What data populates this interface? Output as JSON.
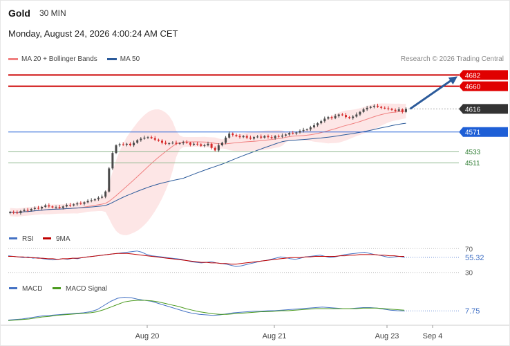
{
  "header": {
    "title": "Gold",
    "interval": "30 MIN",
    "datetime": "Monday, August 24, 2026 4:00:24 AM CET",
    "credit": "Research © 2026 Trading Central"
  },
  "legend": {
    "ma20": "MA 20 + Bollinger Bands",
    "ma50": "MA 50"
  },
  "colors": {
    "candle_up": "#4a4a4a",
    "candle_down": "#d62b2b",
    "ma20": "#f08080",
    "ma50": "#2b5a9a",
    "band_fill": "#fde3e3",
    "resistance": "#cc0000",
    "support": "#1e5fd6",
    "minor_level": "#8fb88f",
    "current": "#333333",
    "arrow": "#2b5a9a",
    "rsi": "#4472c4",
    "rsi_ma": "#c00000",
    "macd": "#4472c4",
    "macd_signal": "#4a9a1e"
  },
  "chart_data": [
    {
      "type": "candlestick",
      "title": "Gold",
      "interval": "30 MIN",
      "ylim": [
        4390,
        4700
      ],
      "x_ticks": [
        "Aug 20",
        "Aug 21",
        "Aug 23",
        "Sep 4"
      ],
      "closes": [
        4415,
        4414,
        4413,
        4417,
        4419,
        4418,
        4421,
        4423,
        4422,
        4425,
        4428,
        4426,
        4424,
        4425,
        4423,
        4426,
        4429,
        4428,
        4430,
        4432,
        4431,
        4434,
        4437,
        4438,
        4440,
        4443,
        4445,
        4455,
        4500,
        4530,
        4545,
        4547,
        4546,
        4548,
        4545,
        4550,
        4555,
        4558,
        4560,
        4561,
        4559,
        4556,
        4554,
        4550,
        4548,
        4549,
        4550,
        4548,
        4549,
        4551,
        4550,
        4546,
        4548,
        4547,
        4544,
        4545,
        4548,
        4540,
        4535,
        4545,
        4550,
        4560,
        4568,
        4565,
        4563,
        4561,
        4563,
        4560,
        4558,
        4561,
        4562,
        4560,
        4563,
        4561,
        4559,
        4563,
        4562,
        4564,
        4566,
        4569,
        4568,
        4570,
        4573,
        4575,
        4576,
        4580,
        4584,
        4588,
        4592,
        4597,
        4600,
        4598,
        4602,
        4605,
        4604,
        4600,
        4598,
        4601,
        4605,
        4610,
        4615,
        4618,
        4620,
        4622,
        4620,
        4618,
        4617,
        4616,
        4614,
        4612,
        4615,
        4610,
        4616
      ],
      "levels": [
        {
          "label": "4682",
          "value": 4682,
          "kind": "resistance"
        },
        {
          "label": "4660",
          "value": 4660,
          "kind": "resistance"
        },
        {
          "label": "4616",
          "value": 4616,
          "kind": "current"
        },
        {
          "label": "4571",
          "value": 4571,
          "kind": "support"
        },
        {
          "label": "4533",
          "value": 4533,
          "kind": "minor"
        },
        {
          "label": "4511",
          "value": 4511,
          "kind": "minor"
        }
      ],
      "forecast_arrow": {
        "from": 4616,
        "to": 4682
      }
    },
    {
      "type": "line",
      "title": "RSI",
      "legend": [
        "RSI",
        "9MA"
      ],
      "ylim": [
        25,
        75
      ],
      "reference_levels": [
        "70",
        "30"
      ],
      "current_value": "55.32",
      "rsi": [
        58,
        57,
        56,
        55,
        56,
        54,
        55,
        53,
        52,
        51,
        52,
        53,
        52,
        54,
        53,
        55,
        56,
        57,
        58,
        59,
        60,
        61,
        62,
        63,
        64,
        65,
        66,
        64,
        60,
        58,
        57,
        56,
        55,
        54,
        53,
        52,
        50,
        48,
        47,
        46,
        47,
        48,
        46,
        45,
        44,
        42,
        40,
        41,
        43,
        45,
        47,
        49,
        50,
        52,
        54,
        56,
        55,
        53,
        52,
        54,
        56,
        57,
        58,
        59,
        57,
        55,
        56,
        58,
        60,
        61,
        62,
        63,
        64,
        62,
        60,
        59,
        57,
        55,
        56,
        57,
        55.32
      ],
      "ma9": [
        57,
        57,
        56,
        56,
        55,
        55,
        54,
        54,
        53,
        53,
        52,
        53,
        53,
        54,
        54,
        55,
        56,
        57,
        58,
        59,
        60,
        61,
        62,
        62,
        62,
        61,
        60,
        59,
        58,
        57,
        56,
        55,
        54,
        53,
        52,
        51,
        50,
        49,
        48,
        47,
        47,
        46,
        46,
        45,
        45,
        44,
        44,
        45,
        46,
        47,
        48,
        49,
        50,
        51,
        52,
        53,
        54,
        55,
        55,
        55,
        56,
        56,
        57,
        57,
        57,
        57,
        57,
        58,
        58,
        59,
        59,
        60,
        60,
        60,
        60,
        59,
        59,
        58,
        58,
        57,
        57
      ]
    },
    {
      "type": "line",
      "title": "MACD",
      "legend": [
        "MACD",
        "MACD Signal"
      ],
      "ylim": [
        -20,
        40
      ],
      "current_value": "7.75",
      "macd": [
        -10,
        -9,
        -8,
        -6,
        -4,
        -2,
        -1,
        0,
        1,
        2,
        3,
        4,
        6,
        10,
        18,
        26,
        32,
        34,
        33,
        30,
        28,
        26,
        22,
        18,
        14,
        10,
        6,
        3,
        1,
        0,
        -1,
        0,
        2,
        4,
        5,
        6,
        7,
        7,
        8,
        8,
        9,
        10,
        11,
        12,
        13,
        14,
        15,
        14,
        13,
        12,
        12,
        13,
        14,
        14,
        13,
        11,
        9,
        8,
        7.75
      ],
      "signal": [
        -11,
        -10,
        -9,
        -8,
        -6,
        -4,
        -3,
        -1,
        0,
        1,
        2,
        3,
        4,
        6,
        10,
        15,
        20,
        25,
        27,
        28,
        28,
        27,
        25,
        22,
        19,
        16,
        12,
        9,
        6,
        4,
        2,
        1,
        1,
        2,
        3,
        4,
        5,
        6,
        6,
        7,
        8,
        8,
        9,
        10,
        11,
        12,
        12,
        12,
        12,
        12,
        12,
        12,
        13,
        13,
        13,
        12,
        11,
        10,
        9
      ]
    }
  ]
}
